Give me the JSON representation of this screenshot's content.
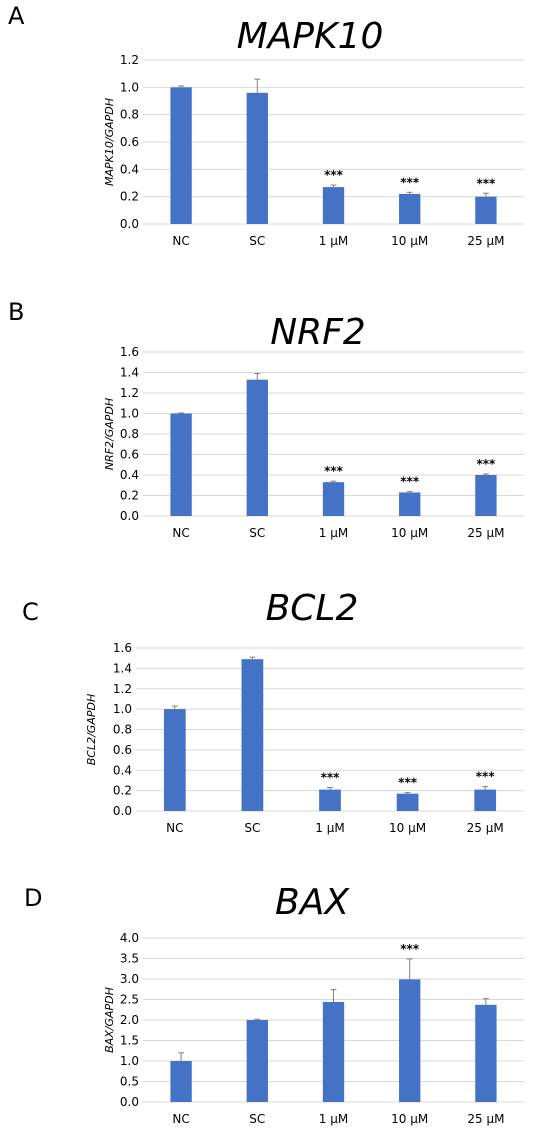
{
  "bar_color": "#4472C4",
  "chart_data": [
    {
      "type": "bar",
      "panel": "A",
      "title": "MAPK10",
      "ylabel": "MAPK10/GAPDH",
      "ylim": [
        0,
        1.2
      ],
      "yticks": [
        "0.0",
        "0.2",
        "0.4",
        "0.6",
        "0.8",
        "1.0",
        "1.2"
      ],
      "categories": [
        "NC",
        "SC",
        "1 µM",
        "10 µM",
        "25 µM"
      ],
      "values": [
        1.0,
        0.96,
        0.27,
        0.22,
        0.2
      ],
      "errors": [
        0.01,
        0.1,
        0.015,
        0.012,
        0.025
      ],
      "significance": [
        "",
        "",
        "***",
        "***",
        "***"
      ],
      "grid": true
    },
    {
      "type": "bar",
      "panel": "B",
      "title": "NRF2",
      "ylabel": "NRF2/GAPDH",
      "ylim": [
        0,
        1.6
      ],
      "yticks": [
        "0.0",
        "0.2",
        "0.4",
        "0.6",
        "0.8",
        "1.0",
        "1.2",
        "1.4",
        "1.6"
      ],
      "categories": [
        "NC",
        "SC",
        "1 µM",
        "10 µM",
        "25 µM"
      ],
      "values": [
        1.0,
        1.33,
        0.33,
        0.23,
        0.4
      ],
      "errors": [
        0.005,
        0.06,
        0.01,
        0.01,
        0.01
      ],
      "significance": [
        "",
        "",
        "***",
        "***",
        "***"
      ],
      "grid": true
    },
    {
      "type": "bar",
      "panel": "C",
      "title": "BCL2",
      "ylabel": "BCL2/GAPDH",
      "ylim": [
        0,
        1.6
      ],
      "yticks": [
        "0.0",
        "0.2",
        "0.4",
        "0.6",
        "0.8",
        "1.0",
        "1.2",
        "1.4",
        "1.6"
      ],
      "categories": [
        "NC",
        "SC",
        "1 µM",
        "10 µM",
        "25 µM"
      ],
      "values": [
        1.0,
        1.49,
        0.21,
        0.17,
        0.21
      ],
      "errors": [
        0.03,
        0.02,
        0.02,
        0.01,
        0.03
      ],
      "significance": [
        "",
        "",
        "***",
        "***",
        "***"
      ],
      "grid": true
    },
    {
      "type": "bar",
      "panel": "D",
      "title": "BAX",
      "ylabel": "BAX/GAPDH",
      "ylim": [
        0,
        4.0
      ],
      "yticks": [
        "0.0",
        "0.5",
        "1.0",
        "1.5",
        "2.0",
        "2.5",
        "3.0",
        "3.5",
        "4.0"
      ],
      "categories": [
        "NC",
        "SC",
        "1 µM",
        "10 µM",
        "25 µM"
      ],
      "values": [
        1.0,
        2.0,
        2.44,
        2.99,
        2.37
      ],
      "errors": [
        0.2,
        0.02,
        0.3,
        0.5,
        0.15
      ],
      "significance": [
        "",
        "",
        "",
        "***",
        ""
      ],
      "grid": true
    }
  ]
}
